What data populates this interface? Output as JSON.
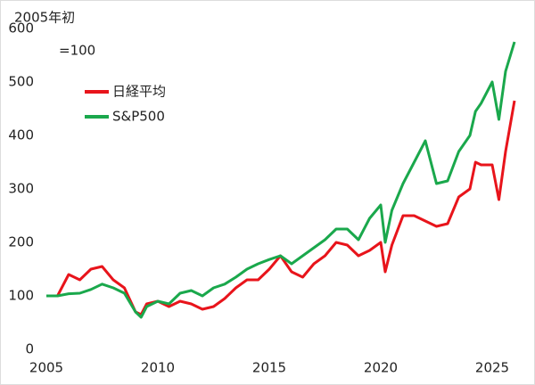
{
  "chart_data": {
    "type": "line",
    "annotations": [
      "2005年初",
      "=100"
    ],
    "x": [
      2005.0,
      2005.5,
      2006.0,
      2006.5,
      2007.0,
      2007.5,
      2008.0,
      2008.5,
      2009.0,
      2009.25,
      2009.5,
      2010.0,
      2010.5,
      2011.0,
      2011.5,
      2012.0,
      2012.5,
      2013.0,
      2013.5,
      2014.0,
      2014.5,
      2015.0,
      2015.5,
      2016.0,
      2016.5,
      2017.0,
      2017.5,
      2018.0,
      2018.5,
      2019.0,
      2019.5,
      2020.0,
      2020.2,
      2020.5,
      2021.0,
      2021.5,
      2022.0,
      2022.5,
      2023.0,
      2023.5,
      2024.0,
      2024.25,
      2024.5,
      2025.0,
      2025.3,
      2025.6,
      2026.0
    ],
    "series": [
      {
        "name": "日経平均",
        "color": "#e8141b",
        "values": [
          100,
          100,
          140,
          130,
          150,
          155,
          130,
          115,
          70,
          65,
          85,
          90,
          80,
          90,
          85,
          75,
          80,
          95,
          115,
          130,
          130,
          150,
          175,
          145,
          135,
          160,
          175,
          200,
          195,
          175,
          185,
          200,
          145,
          195,
          250,
          250,
          240,
          230,
          235,
          285,
          300,
          350,
          345,
          345,
          280,
          370,
          465
        ]
      },
      {
        "name": "S&P500",
        "color": "#1aa84c",
        "values": [
          100,
          100,
          104,
          105,
          112,
          122,
          115,
          105,
          70,
          60,
          80,
          90,
          85,
          105,
          110,
          100,
          115,
          122,
          135,
          150,
          160,
          168,
          175,
          160,
          175,
          190,
          205,
          225,
          225,
          205,
          245,
          270,
          200,
          260,
          310,
          350,
          390,
          310,
          315,
          370,
          400,
          445,
          460,
          500,
          430,
          520,
          575
        ]
      }
    ],
    "xlim": [
      2005,
      2026.5
    ],
    "xticks": [
      2005,
      2010,
      2015,
      2020,
      2025
    ],
    "ylim": [
      0,
      600
    ],
    "yticks": [
      0,
      100,
      200,
      300,
      400,
      500,
      600
    ]
  }
}
